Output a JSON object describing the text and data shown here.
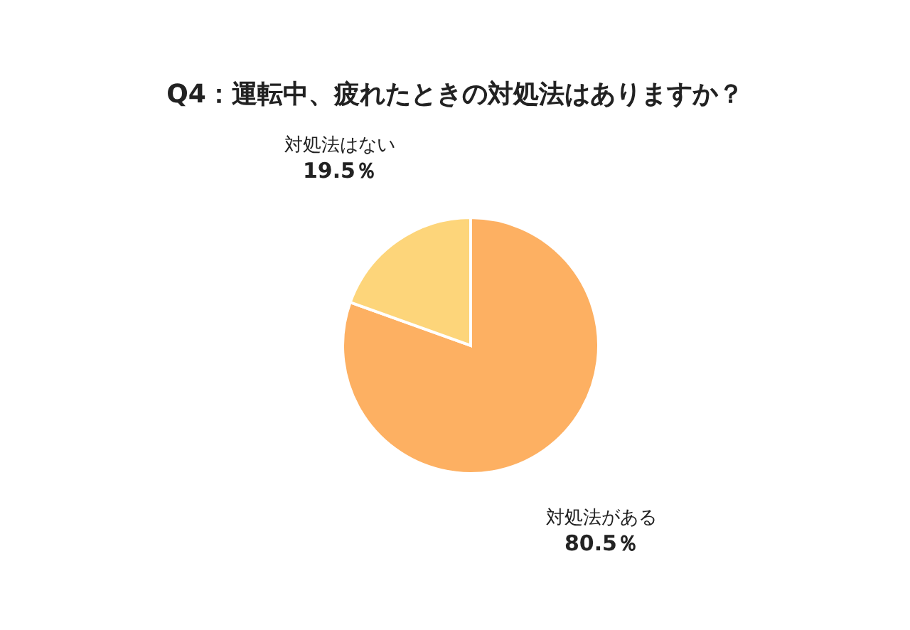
{
  "chart_data": {
    "type": "pie",
    "title": "Q4：運転中、疲れたときの対処法はありますか？",
    "categories": [
      "対処法がある",
      "対処法はない"
    ],
    "values": [
      80.5,
      19.5
    ],
    "value_labels": [
      "80.5％",
      "19.5％"
    ],
    "colors": [
      "#fdb062",
      "#fdd57a"
    ]
  }
}
